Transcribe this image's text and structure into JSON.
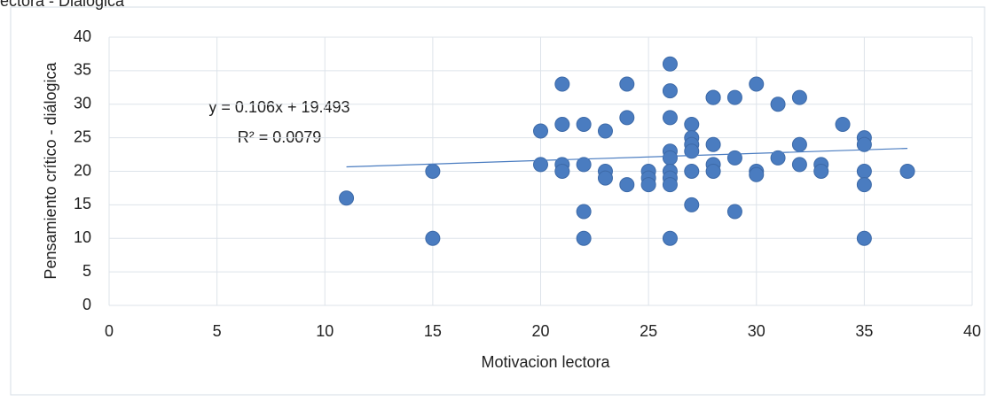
{
  "chart_data": {
    "type": "scatter",
    "title": "ectora - Dialógica",
    "x_label": "Motivacion lectora",
    "y_label": "Pensamiento crítico - diálogica",
    "color": "#4a7cc0",
    "xlim": [
      0,
      40
    ],
    "xticks": [
      0,
      5,
      10,
      15,
      20,
      25,
      30,
      35,
      40
    ],
    "ylim": [
      0,
      40
    ],
    "yticks": [
      0,
      5,
      10,
      15,
      20,
      25,
      30,
      35,
      40
    ],
    "grid": true,
    "x": [
      11,
      15,
      15,
      20,
      20,
      21,
      21,
      21,
      21,
      22,
      22,
      22,
      22,
      23,
      23,
      23,
      24,
      24,
      24,
      25,
      25,
      25,
      26,
      26,
      26,
      26,
      26,
      26,
      26,
      26,
      26,
      27,
      27,
      27,
      27,
      27,
      27,
      28,
      28,
      28,
      28,
      28,
      29,
      29,
      29,
      30,
      30,
      30,
      31,
      31,
      32,
      32,
      32,
      33,
      33,
      34,
      35,
      35,
      35,
      35,
      35,
      37
    ],
    "y": [
      16,
      20,
      10,
      26,
      21,
      33,
      27,
      21,
      20,
      27,
      21,
      14,
      10,
      26,
      20,
      19,
      33,
      28,
      18,
      20,
      19,
      18,
      36,
      32,
      28,
      23,
      22,
      20,
      19,
      18,
      10,
      27,
      25,
      24,
      23,
      20,
      15,
      31,
      24,
      21,
      20,
      31,
      31,
      22,
      14,
      33,
      20,
      19.5,
      30,
      22,
      31,
      24,
      21,
      21,
      20,
      27,
      25,
      24,
      20,
      18,
      10,
      20
    ],
    "trendline": {
      "slope": 0.106,
      "intercept": 19.493
    },
    "equation": "y = 0.106x + 19.493",
    "r_squared": "R² = 0.0079"
  }
}
